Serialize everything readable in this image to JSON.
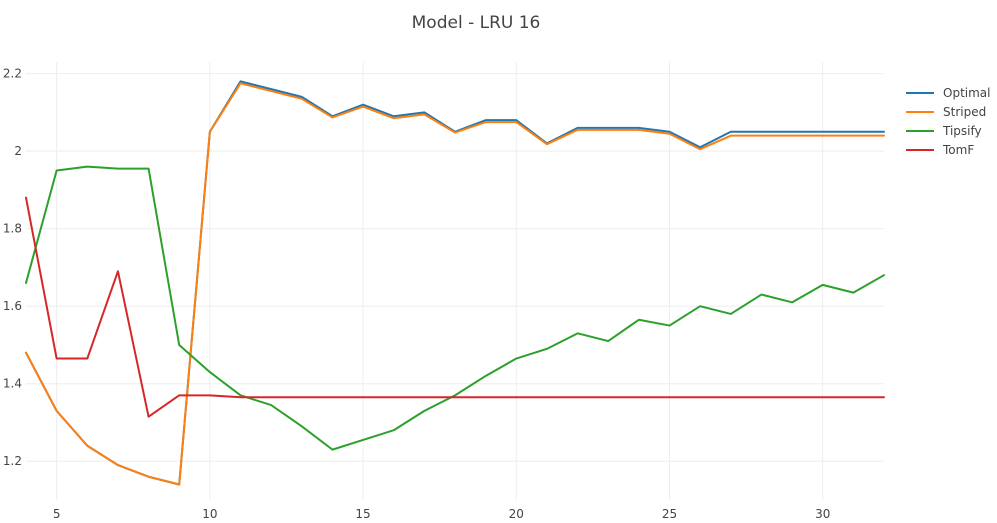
{
  "chart_data": {
    "type": "line",
    "title": "Model - LRU 16",
    "xlabel": "",
    "ylabel": "",
    "xlim": [
      4,
      32
    ],
    "ylim": [
      1.1,
      2.23
    ],
    "x_ticks": [
      5,
      10,
      15,
      20,
      25,
      30
    ],
    "y_ticks": [
      1.2,
      1.4,
      1.6,
      1.8,
      2,
      2.2
    ],
    "grid": true,
    "legend_position": "top-right",
    "x": [
      4,
      5,
      6,
      7,
      8,
      9,
      10,
      11,
      12,
      13,
      14,
      15,
      16,
      17,
      18,
      19,
      20,
      21,
      22,
      23,
      24,
      25,
      26,
      27,
      28,
      29,
      30,
      31,
      32
    ],
    "series": [
      {
        "name": "Optimal",
        "color": "#1f77b4",
        "values": [
          1.48,
          1.33,
          1.24,
          1.19,
          1.16,
          1.14,
          2.05,
          2.18,
          2.16,
          2.14,
          2.09,
          2.12,
          2.09,
          2.1,
          2.05,
          2.08,
          2.08,
          2.02,
          2.06,
          2.06,
          2.06,
          2.05,
          2.01,
          2.05,
          2.05,
          2.05,
          2.05,
          2.05,
          2.05
        ]
      },
      {
        "name": "Striped",
        "color": "#ff7f0e",
        "values": [
          1.48,
          1.33,
          1.24,
          1.19,
          1.16,
          1.14,
          2.05,
          2.175,
          2.155,
          2.135,
          2.087,
          2.115,
          2.085,
          2.095,
          2.048,
          2.075,
          2.075,
          2.018,
          2.055,
          2.055,
          2.055,
          2.045,
          2.005,
          2.04,
          2.04,
          2.04,
          2.04,
          2.04,
          2.04
        ]
      },
      {
        "name": "Tipsify",
        "color": "#2ca02c",
        "values": [
          1.66,
          1.95,
          1.96,
          1.955,
          1.955,
          1.5,
          1.43,
          1.37,
          1.345,
          1.29,
          1.23,
          1.255,
          1.28,
          1.33,
          1.37,
          1.42,
          1.465,
          1.49,
          1.53,
          1.51,
          1.565,
          1.55,
          1.6,
          1.58,
          1.63,
          1.61,
          1.655,
          1.635,
          1.68
        ]
      },
      {
        "name": "TomF",
        "color": "#d62728",
        "values": [
          1.88,
          1.465,
          1.465,
          1.69,
          1.315,
          1.37,
          1.37,
          1.365,
          1.365,
          1.365,
          1.365,
          1.365,
          1.365,
          1.365,
          1.365,
          1.365,
          1.365,
          1.365,
          1.365,
          1.365,
          1.365,
          1.365,
          1.365,
          1.365,
          1.365,
          1.365,
          1.365,
          1.365,
          1.365
        ]
      }
    ]
  }
}
